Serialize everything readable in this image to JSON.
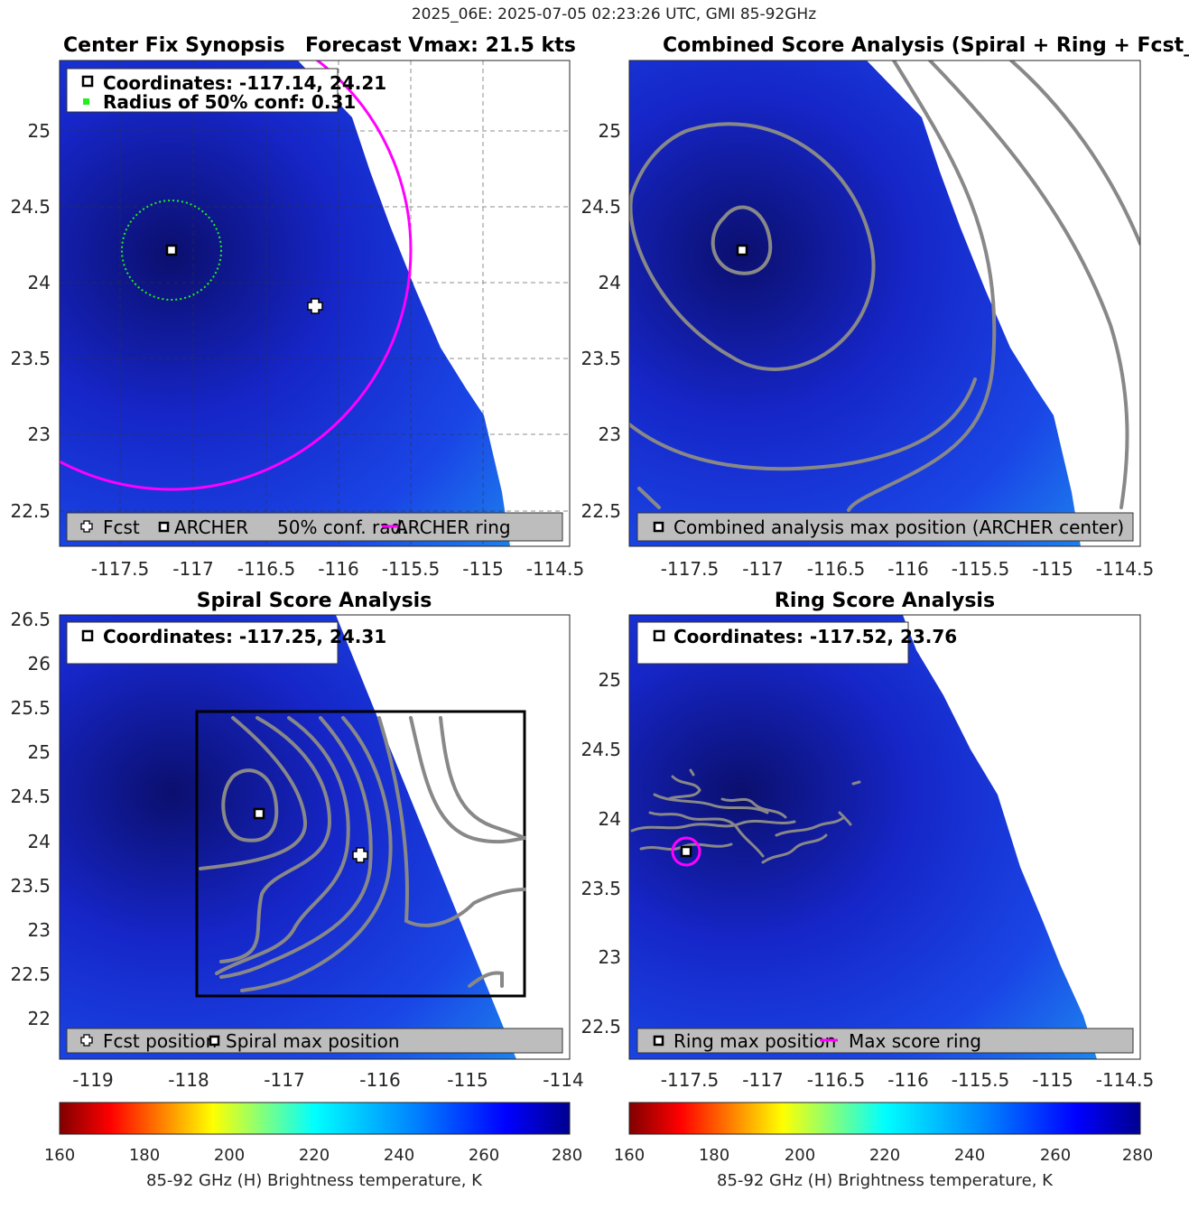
{
  "suptitle": "2025_06E: 2025-07-05 02:23:26 UTC, GMI 85-92GHz",
  "colors": {
    "fcst_ring": "#ff00ff",
    "conf_circle": "#22ee22",
    "contour": "#888888",
    "legend_bg": "#bdbdbd"
  },
  "panels": [
    {
      "title_left": "Center Fix Synopsis",
      "title_right": "Forecast Vmax: 21.5 kts",
      "info": [
        "Coordinates: -117.14, 24.21",
        "Radius of 50% conf: 0.31"
      ],
      "legend": [
        "Fcst",
        "ARCHER",
        "50% conf. rad.",
        "ARCHER ring"
      ]
    },
    {
      "title": "Combined Score Analysis (Spiral + Ring + Fcst_Pe",
      "legend": [
        "Combined analysis max position (ARCHER center)"
      ]
    },
    {
      "title": "Spiral Score Analysis",
      "info": [
        "Coordinates: -117.25, 24.31"
      ],
      "legend": [
        "Fcst position",
        "Spiral max position"
      ]
    },
    {
      "title": "Ring Score Analysis",
      "info": [
        "Coordinates: -117.52, 23.76"
      ],
      "legend": [
        "Ring max position",
        "Max score ring"
      ]
    }
  ],
  "colorbar": {
    "label": "85-92 GHz (H) Brightness temperature, K",
    "ticks": [
      "160",
      "180",
      "200",
      "220",
      "240",
      "260",
      "280"
    ],
    "range": [
      160,
      280
    ]
  },
  "chart_data": [
    {
      "type": "heatmap",
      "title": "Center Fix Synopsis",
      "xlim": [
        -117.9,
        -114.4
      ],
      "ylim": [
        22.3,
        25.5
      ],
      "x_ticks": [
        -117.5,
        -117,
        -116.5,
        -116,
        -115.5,
        -115,
        -114.5
      ],
      "y_ticks": [
        22.5,
        23,
        23.5,
        24,
        24.5,
        25
      ],
      "grid": true,
      "archer_center": [
        -117.14,
        24.21
      ],
      "forecast_position": [
        -116.15,
        23.86
      ],
      "conf_radius_deg": 0.31,
      "archer_ring_radius_deg": 1.63,
      "swath_edge": [
        [
          -115.6,
          25.5
        ],
        [
          -114.8,
          22.3
        ]
      ]
    },
    {
      "type": "heatmap",
      "title": "Combined Score Analysis",
      "xlim": [
        -117.9,
        -114.4
      ],
      "ylim": [
        22.3,
        25.5
      ],
      "x_ticks": [
        -117.5,
        -117,
        -116.5,
        -116,
        -115.5,
        -115,
        -114.5
      ],
      "y_ticks": [
        22.5,
        23,
        23.5,
        24,
        24.5,
        25
      ],
      "max_position": [
        -117.14,
        24.21
      ],
      "swath_edge": [
        [
          -115.6,
          25.5
        ],
        [
          -114.8,
          22.3
        ]
      ]
    },
    {
      "type": "heatmap",
      "title": "Spiral Score Analysis",
      "xlim": [
        -119.3,
        -113.97
      ],
      "ylim": [
        21.5,
        26.5
      ],
      "x_ticks": [
        -119,
        -118,
        -117,
        -116,
        -115,
        -114
      ],
      "y_ticks": [
        22,
        22.5,
        23,
        23.5,
        24,
        24.5,
        25,
        25.5,
        26,
        26.5
      ],
      "spiral_max_position": [
        -117.25,
        24.31
      ],
      "forecast_position": [
        -116.15,
        23.86
      ],
      "search_box": [
        -117.88,
        22.27,
        -114.42,
        25.47
      ],
      "swath_edge": [
        [
          -116.8,
          26.5
        ],
        [
          -114.5,
          21.6
        ]
      ]
    },
    {
      "type": "heatmap",
      "title": "Ring Score Analysis",
      "xlim": [
        -117.9,
        -114.4
      ],
      "ylim": [
        22.3,
        25.5
      ],
      "x_ticks": [
        -117.5,
        -117,
        -116.5,
        -116,
        -115.5,
        -115,
        -114.5
      ],
      "y_ticks": [
        22.5,
        23,
        23.5,
        24,
        24.5,
        25
      ],
      "ring_max_position": [
        -117.52,
        23.76
      ],
      "max_ring_radius_deg": 0.1,
      "swath_edge": [
        [
          -115.6,
          25.5
        ],
        [
          -114.8,
          22.3
        ]
      ]
    }
  ]
}
